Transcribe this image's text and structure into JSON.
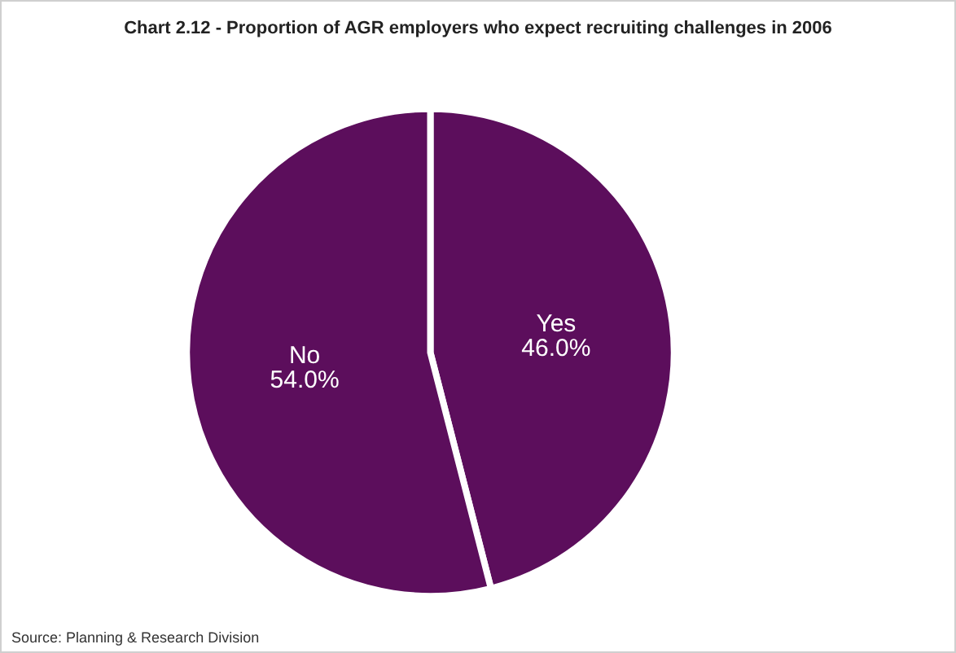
{
  "chart_data": {
    "type": "pie",
    "title": "Chart 2.12 - Proportion of AGR employers who expect recruiting challenges in 2006",
    "categories": [
      "Yes",
      "No"
    ],
    "values": [
      46.0,
      54.0
    ],
    "colors": [
      "#5c0e5c",
      "#5c0e5c"
    ],
    "value_labels": [
      "46.0%",
      "54.0%"
    ],
    "annotations": [
      "Source: Planning & Research Division"
    ],
    "legend": false
  }
}
